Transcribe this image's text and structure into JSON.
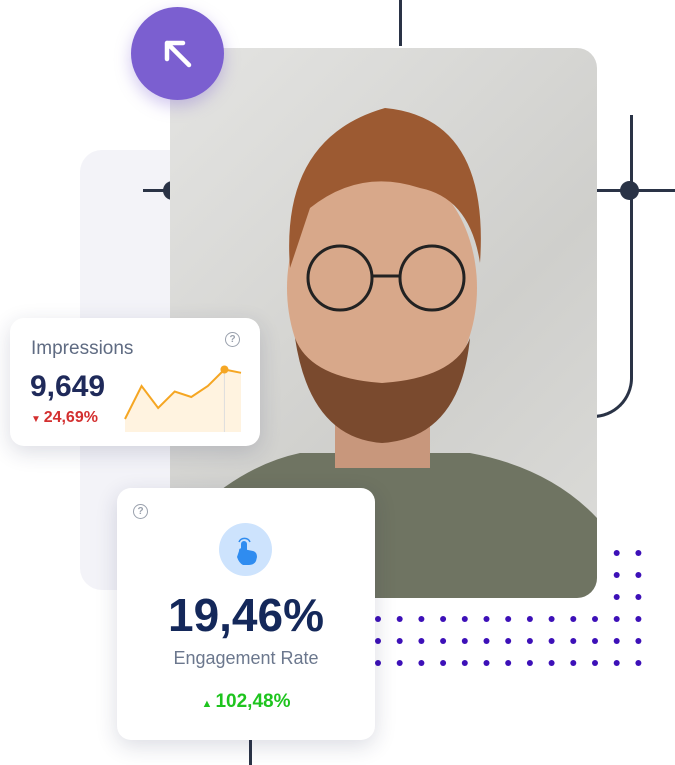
{
  "impressions": {
    "title": "Impressions",
    "value": "9,649",
    "change": "24,69%",
    "change_direction": "down",
    "change_color": "#d32f2f",
    "sparkline": [
      3,
      6,
      4,
      5.5,
      5,
      6,
      7.5,
      7.2
    ]
  },
  "engagement": {
    "value": "19,46%",
    "label": "Engagement Rate",
    "change": "102,48%",
    "change_direction": "up",
    "change_color": "#1ec41e",
    "icon": "tap-hand-icon"
  },
  "colors": {
    "accent": "#7b5fd0",
    "dots": "#3d10b8",
    "navy": "#14285a",
    "spark": "#f5a623"
  },
  "icons": {
    "badge": "arrow-up-left-icon",
    "help": "question-circle-icon"
  }
}
